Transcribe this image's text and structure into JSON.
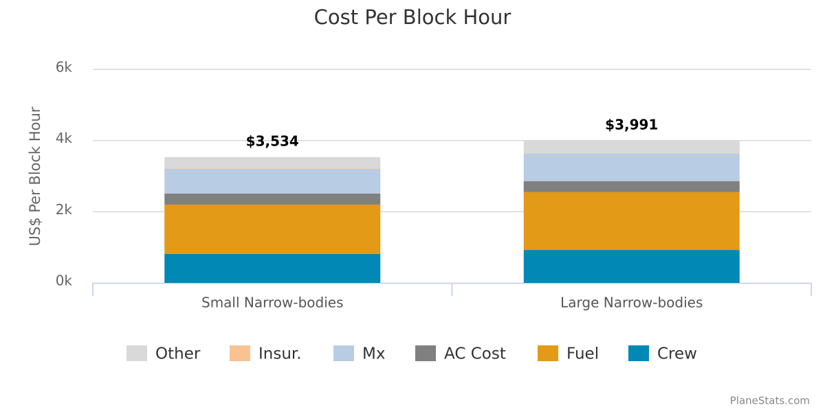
{
  "chart_data": {
    "type": "stacked_bar",
    "title": "Cost Per Block Hour",
    "y_axis_label": "US$ Per Block Hour",
    "categories": [
      "Small Narrow-bodies",
      "Large Narrow-bodies"
    ],
    "series": [
      {
        "name": "Other",
        "color": "#d9d9d9",
        "values": [
          314,
          346
        ]
      },
      {
        "name": "Insur.",
        "color": "#f9c293",
        "values": [
          15,
          15
        ]
      },
      {
        "name": "Mx",
        "color": "#b8cce4",
        "values": [
          695,
          770
        ]
      },
      {
        "name": "AC Cost",
        "color": "#808080",
        "values": [
          310,
          310
        ]
      },
      {
        "name": "Fuel",
        "color": "#e39a17",
        "values": [
          1390,
          1625
        ]
      },
      {
        "name": "Crew",
        "color": "#0288b5",
        "values": [
          810,
          925
        ]
      }
    ],
    "totals": {
      "values": [
        3534,
        3991
      ],
      "value_labels": [
        "$3,534",
        "$3,991"
      ]
    },
    "ylim": [
      0,
      6000
    ],
    "yticks": [
      {
        "value": 0,
        "label": "0k"
      },
      {
        "value": 2000,
        "label": "2k"
      },
      {
        "value": 4000,
        "label": "4k"
      },
      {
        "value": 6000,
        "label": "6k"
      }
    ],
    "grid": true,
    "legend": "bottom",
    "credit": "PlaneStats.com"
  }
}
